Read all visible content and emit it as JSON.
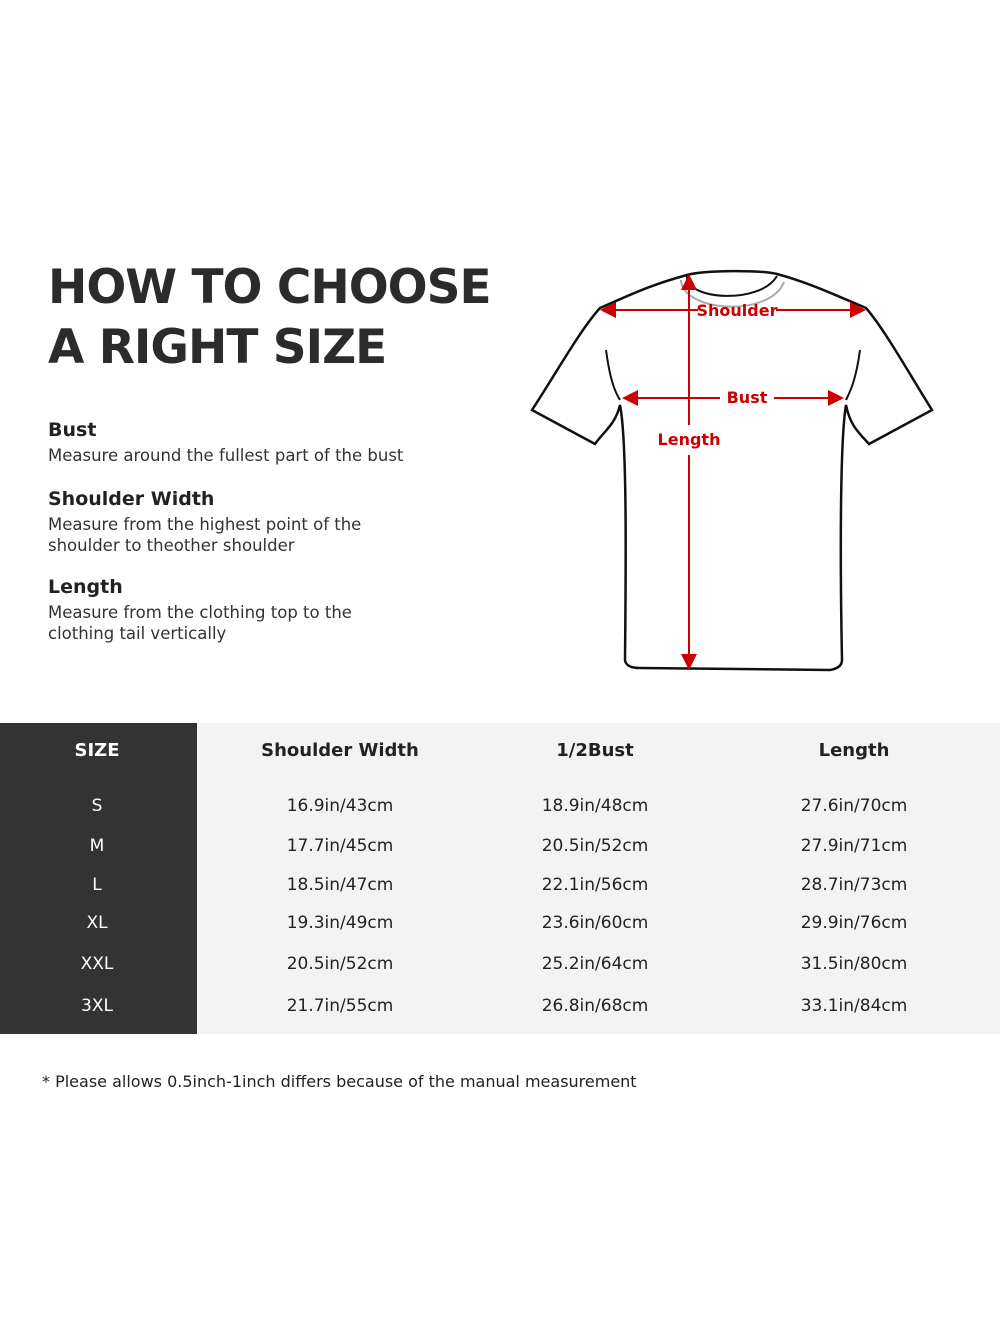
{
  "title_lines": [
    "HOW TO CHOOSE",
    "A RIGHT SIZE"
  ],
  "guide": [
    {
      "heading": "Bust",
      "text": [
        "Measure around the fullest part of the bust"
      ]
    },
    {
      "heading": "Shoulder Width",
      "text": [
        "Measure from the highest point of the",
        "shoulder to theother shoulder"
      ]
    },
    {
      "heading": "Length",
      "text": [
        "Measure from the clothing top to the",
        "clothing tail vertically"
      ]
    }
  ],
  "diagram": {
    "labels": {
      "shoulder": "Shoulder",
      "bust": "Bust",
      "length": "Length"
    },
    "arrow_color": "#cc0000"
  },
  "table": {
    "headers": [
      "SIZE",
      "Shoulder Width",
      "1/2Bust",
      "Length"
    ],
    "rows": [
      [
        "S",
        "16.9in/43cm",
        "18.9in/48cm",
        "27.6in/70cm"
      ],
      [
        "M",
        "17.7in/45cm",
        "20.5in/52cm",
        "27.9in/71cm"
      ],
      [
        "L",
        "18.5in/47cm",
        "22.1in/56cm",
        "28.7in/73cm"
      ],
      [
        "XL",
        "19.3in/49cm",
        "23.6in/60cm",
        "29.9in/76cm"
      ],
      [
        "XXL",
        "20.5in/52cm",
        "25.2in/64cm",
        "31.5in/80cm"
      ],
      [
        "3XL",
        "21.7in/55cm",
        "26.8in/68cm",
        "33.1in/84cm"
      ]
    ]
  },
  "note": "* Please allows 0.5inch-1inch differs because of the  manual measurement"
}
